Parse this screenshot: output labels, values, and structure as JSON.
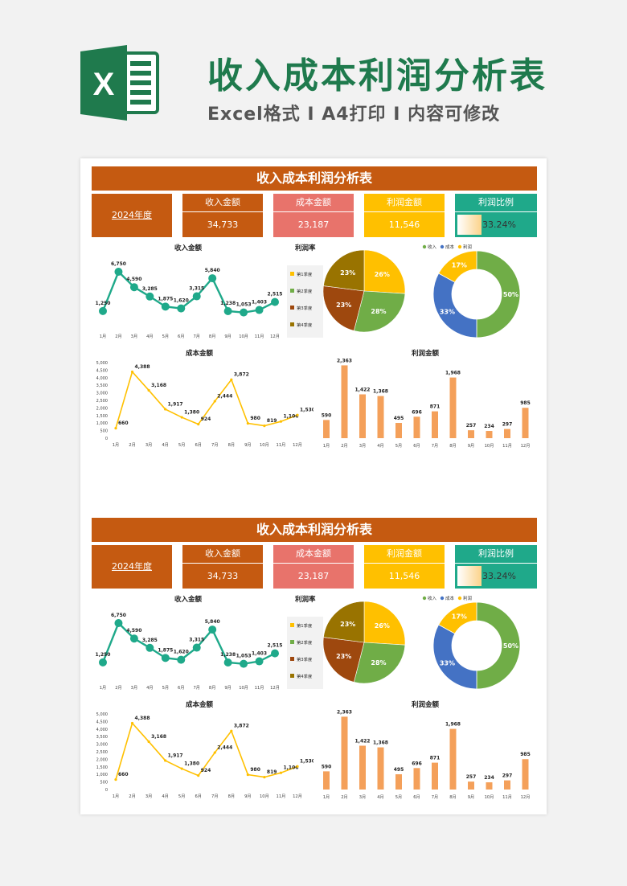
{
  "header": {
    "title": "收入成本利润分析表",
    "subtitle": "Excel格式 I A4打印 I 内容可修改",
    "logo_letter": "X"
  },
  "sheet": {
    "banner": "收入成本利润分析表",
    "year": "2024年度",
    "cards": {
      "revenue_label": "收入金额",
      "revenue_value": "34,733",
      "cost_label": "成本金额",
      "cost_value": "23,187",
      "profit_label": "利润金额",
      "profit_value": "11,546",
      "ratio_label": "利润比例",
      "ratio_value": "33.24%",
      "ratio_fraction": 0.3324
    }
  },
  "colors": {
    "orange": "#c55a11",
    "salmon": "#e8736b",
    "gold": "#ffc000",
    "teal": "#1fa98a",
    "green_title": "#1f7a4d",
    "bar": "#f4a05a",
    "line_yellow": "#ffc000"
  },
  "chart_data": [
    {
      "type": "line",
      "title": "收入金额",
      "categories": [
        "1月",
        "2月",
        "3月",
        "4月",
        "5月",
        "6月",
        "7月",
        "8月",
        "9月",
        "10月",
        "11月",
        "12月"
      ],
      "values": [
        1250,
        6750,
        4590,
        3285,
        1875,
        1620,
        3315,
        5840,
        1238,
        1053,
        1403,
        2515
      ],
      "labels": [
        "1,250",
        "6,750",
        "4,590",
        "3,285",
        "1,875",
        "1,620",
        "3,315",
        "5,840",
        "1,238",
        "1,053",
        "1,403",
        "2,515"
      ],
      "color": "#1fa98a",
      "markers": "large-circle"
    },
    {
      "type": "pie",
      "title": "利润率",
      "series": [
        {
          "name": "第1季度",
          "value": 26,
          "label": "26%",
          "color": "#ffc000"
        },
        {
          "name": "第2季度",
          "value": 28,
          "label": "28%",
          "color": "#70ad47"
        },
        {
          "name": "第3季度",
          "value": 23,
          "label": "23%",
          "color": "#9e480e"
        },
        {
          "name": "第4季度",
          "value": 23,
          "label": "23%",
          "color": "#997300"
        }
      ],
      "legend": "left"
    },
    {
      "type": "pie",
      "subtype": "doughnut",
      "series": [
        {
          "name": "收入",
          "value": 50,
          "label": "50%",
          "color": "#70ad47"
        },
        {
          "name": "成本",
          "value": 33,
          "label": "33%",
          "color": "#4472c4"
        },
        {
          "name": "利润",
          "value": 17,
          "label": "17%",
          "color": "#ffc000"
        }
      ],
      "legend": "top"
    },
    {
      "type": "line",
      "title": "成本金额",
      "categories": [
        "1月",
        "2月",
        "3月",
        "4月",
        "5月",
        "6月",
        "7月",
        "8月",
        "9月",
        "10月",
        "11月",
        "12月"
      ],
      "values": [
        660,
        4388,
        3168,
        1917,
        1380,
        924,
        2444,
        3872,
        980,
        819,
        1106,
        1530
      ],
      "labels": [
        "660",
        "4,388",
        "3,168",
        "1,917",
        "1,380",
        "924",
        "2,444",
        "3,872",
        "980",
        "819",
        "1,106",
        "1,530"
      ],
      "yticks": [
        "0",
        "500",
        "1,000",
        "1,500",
        "2,000",
        "2,500",
        "3,000",
        "3,500",
        "4,000",
        "4,500",
        "5,000"
      ],
      "ylim": [
        0,
        5000
      ],
      "color": "#ffc000"
    },
    {
      "type": "bar",
      "title": "利润金额",
      "categories": [
        "1月",
        "2月",
        "3月",
        "4月",
        "5月",
        "6月",
        "7月",
        "8月",
        "9月",
        "10月",
        "11月",
        "12月"
      ],
      "values": [
        590,
        2363,
        1422,
        1368,
        495,
        696,
        871,
        1968,
        257,
        234,
        297,
        985
      ],
      "labels": [
        "590",
        "2,363",
        "1,422",
        "1,368",
        "495",
        "696",
        "871",
        "1,968",
        "257",
        "234",
        "297",
        "985"
      ],
      "color": "#f4a05a"
    }
  ]
}
